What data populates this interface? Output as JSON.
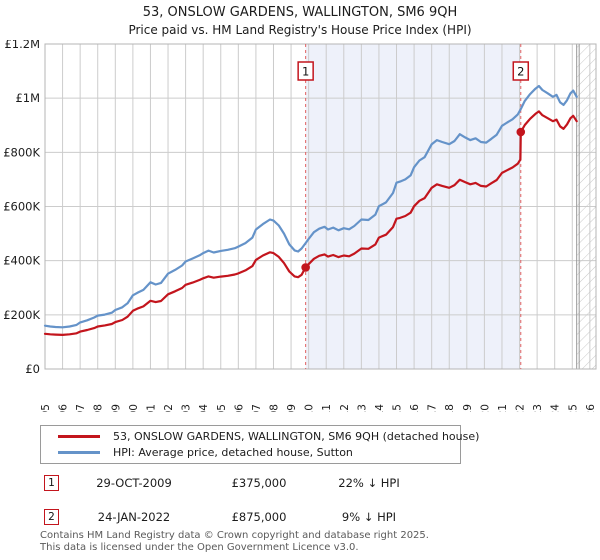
{
  "header": {
    "title": "53, ONSLOW GARDENS, WALLINGTON, SM6 9QH",
    "subtitle": "Price paid vs. HM Land Registry's House Price Index (HPI)"
  },
  "chart_data": {
    "type": "line",
    "title": "53, ONSLOW GARDENS, WALLINGTON, SM6 9QH",
    "subtitle": "Price paid vs. HM Land Registry's House Price Index (HPI)",
    "xlim": [
      1995,
      2026.35
    ],
    "ylim": [
      0,
      1200
    ],
    "values_unit": "GBP thousands",
    "grid": true,
    "legend_position": "bottom",
    "x_ticks": [
      1995,
      1996,
      1997,
      1998,
      1999,
      2000,
      2001,
      2002,
      2003,
      2004,
      2005,
      2006,
      2007,
      2008,
      2009,
      2010,
      2011,
      2012,
      2013,
      2014,
      2015,
      2016,
      2017,
      2018,
      2019,
      2020,
      2021,
      2022,
      2023,
      2024,
      2025,
      2026
    ],
    "y_tick_values": [
      0,
      200,
      400,
      600,
      800,
      1000,
      1200
    ],
    "y_tick_labels": [
      "£0",
      "£200K",
      "£400K",
      "£600K",
      "£800K",
      "£1M",
      "£1.2M"
    ],
    "shaded_region": {
      "from": 2009.83,
      "to": 2022.07,
      "color": "#eef1fa"
    },
    "hatch_from": 2025.25,
    "colors": {
      "grid": "#cccccc",
      "border": "#b5b5b5",
      "dashed": "#e06060",
      "hatch": "#c8c8c8"
    },
    "series": [
      {
        "name": "53, ONSLOW GARDENS, WALLINGTON, SM6 9QH (detached house)",
        "color": "#c3151d",
        "points": [
          [
            1995,
            130
          ],
          [
            1995.3,
            128
          ],
          [
            1995.6,
            127
          ],
          [
            1996,
            126
          ],
          [
            1996.4,
            128
          ],
          [
            1996.8,
            132
          ],
          [
            1997,
            138
          ],
          [
            1997.4,
            144
          ],
          [
            1997.8,
            151
          ],
          [
            1998,
            157
          ],
          [
            1998.4,
            161
          ],
          [
            1998.8,
            166
          ],
          [
            1999,
            173
          ],
          [
            1999.4,
            181
          ],
          [
            1999.7,
            193
          ],
          [
            2000,
            215
          ],
          [
            2000.3,
            224
          ],
          [
            2000.6,
            231
          ],
          [
            2001,
            252
          ],
          [
            2001.3,
            247
          ],
          [
            2001.6,
            251
          ],
          [
            2002,
            276
          ],
          [
            2002.4,
            287
          ],
          [
            2002.8,
            299
          ],
          [
            2003,
            311
          ],
          [
            2003.4,
            319
          ],
          [
            2003.8,
            329
          ],
          [
            2004,
            335
          ],
          [
            2004.3,
            342
          ],
          [
            2004.6,
            337
          ],
          [
            2005,
            341
          ],
          [
            2005.4,
            344
          ],
          [
            2005.8,
            349
          ],
          [
            2006,
            353
          ],
          [
            2006.4,
            364
          ],
          [
            2006.8,
            380
          ],
          [
            2007,
            403
          ],
          [
            2007.4,
            419
          ],
          [
            2007.8,
            431
          ],
          [
            2008,
            428
          ],
          [
            2008.3,
            414
          ],
          [
            2008.6,
            391
          ],
          [
            2008.9,
            360
          ],
          [
            2009.2,
            342
          ],
          [
            2009.4,
            339
          ],
          [
            2009.6,
            348
          ],
          [
            2009.83,
            375
          ],
          [
            2010,
            387
          ],
          [
            2010.3,
            407
          ],
          [
            2010.6,
            418
          ],
          [
            2010.9,
            423
          ],
          [
            2011.1,
            415
          ],
          [
            2011.4,
            421
          ],
          [
            2011.7,
            413
          ],
          [
            2012,
            419
          ],
          [
            2012.3,
            416
          ],
          [
            2012.6,
            426
          ],
          [
            2013,
            445
          ],
          [
            2013.4,
            444
          ],
          [
            2013.8,
            460
          ],
          [
            2014,
            485
          ],
          [
            2014.4,
            496
          ],
          [
            2014.8,
            524
          ],
          [
            2015,
            555
          ],
          [
            2015.2,
            558
          ],
          [
            2015.5,
            565
          ],
          [
            2015.8,
            577
          ],
          [
            2016,
            601
          ],
          [
            2016.3,
            621
          ],
          [
            2016.6,
            631
          ],
          [
            2017,
            669
          ],
          [
            2017.3,
            682
          ],
          [
            2017.6,
            676
          ],
          [
            2018,
            669
          ],
          [
            2018.3,
            679
          ],
          [
            2018.6,
            699
          ],
          [
            2018.9,
            690
          ],
          [
            2019.2,
            682
          ],
          [
            2019.5,
            687
          ],
          [
            2019.8,
            676
          ],
          [
            2020.1,
            674
          ],
          [
            2020.4,
            686
          ],
          [
            2020.7,
            698
          ],
          [
            2021,
            724
          ],
          [
            2021.3,
            734
          ],
          [
            2021.6,
            744
          ],
          [
            2021.9,
            758
          ],
          [
            2022.05,
            774
          ],
          [
            2022.07,
            875
          ],
          [
            2022.3,
            901
          ],
          [
            2022.6,
            924
          ],
          [
            2022.9,
            942
          ],
          [
            2023.1,
            951
          ],
          [
            2023.3,
            937
          ],
          [
            2023.6,
            926
          ],
          [
            2023.9,
            915
          ],
          [
            2024.1,
            921
          ],
          [
            2024.3,
            896
          ],
          [
            2024.5,
            887
          ],
          [
            2024.7,
            903
          ],
          [
            2024.9,
            926
          ],
          [
            2025.05,
            935
          ],
          [
            2025.25,
            915
          ]
        ]
      },
      {
        "name": "HPI: Average price, detached house, Sutton",
        "color": "#6593c9",
        "points": [
          [
            1995,
            160
          ],
          [
            1995.3,
            157
          ],
          [
            1995.6,
            155
          ],
          [
            1996,
            154
          ],
          [
            1996.4,
            157
          ],
          [
            1996.8,
            163
          ],
          [
            1997,
            172
          ],
          [
            1997.4,
            180
          ],
          [
            1997.8,
            190
          ],
          [
            1998,
            197
          ],
          [
            1998.4,
            201
          ],
          [
            1998.8,
            208
          ],
          [
            1999,
            218
          ],
          [
            1999.4,
            228
          ],
          [
            1999.7,
            243
          ],
          [
            2000,
            272
          ],
          [
            2000.3,
            283
          ],
          [
            2000.6,
            292
          ],
          [
            2001,
            320
          ],
          [
            2001.3,
            312
          ],
          [
            2001.6,
            318
          ],
          [
            2002,
            352
          ],
          [
            2002.4,
            366
          ],
          [
            2002.8,
            382
          ],
          [
            2003,
            397
          ],
          [
            2003.4,
            408
          ],
          [
            2003.8,
            420
          ],
          [
            2004,
            428
          ],
          [
            2004.3,
            437
          ],
          [
            2004.6,
            430
          ],
          [
            2005,
            436
          ],
          [
            2005.4,
            440
          ],
          [
            2005.8,
            446
          ],
          [
            2006,
            452
          ],
          [
            2006.4,
            465
          ],
          [
            2006.8,
            485
          ],
          [
            2007,
            515
          ],
          [
            2007.4,
            535
          ],
          [
            2007.8,
            552
          ],
          [
            2008,
            548
          ],
          [
            2008.3,
            530
          ],
          [
            2008.6,
            500
          ],
          [
            2008.9,
            460
          ],
          [
            2009.2,
            438
          ],
          [
            2009.4,
            434
          ],
          [
            2009.6,
            445
          ],
          [
            2009.83,
            465
          ],
          [
            2010,
            480
          ],
          [
            2010.3,
            505
          ],
          [
            2010.6,
            518
          ],
          [
            2010.9,
            525
          ],
          [
            2011.1,
            515
          ],
          [
            2011.4,
            522
          ],
          [
            2011.7,
            512
          ],
          [
            2012,
            520
          ],
          [
            2012.3,
            516
          ],
          [
            2012.6,
            528
          ],
          [
            2013,
            552
          ],
          [
            2013.4,
            550
          ],
          [
            2013.8,
            570
          ],
          [
            2014,
            601
          ],
          [
            2014.4,
            615
          ],
          [
            2014.8,
            650
          ],
          [
            2015,
            688
          ],
          [
            2015.2,
            692
          ],
          [
            2015.5,
            700
          ],
          [
            2015.8,
            715
          ],
          [
            2016,
            745
          ],
          [
            2016.3,
            770
          ],
          [
            2016.6,
            782
          ],
          [
            2017,
            830
          ],
          [
            2017.3,
            845
          ],
          [
            2017.6,
            838
          ],
          [
            2018,
            830
          ],
          [
            2018.3,
            842
          ],
          [
            2018.6,
            867
          ],
          [
            2018.9,
            855
          ],
          [
            2019.2,
            845
          ],
          [
            2019.5,
            852
          ],
          [
            2019.8,
            838
          ],
          [
            2020.1,
            836
          ],
          [
            2020.4,
            850
          ],
          [
            2020.7,
            865
          ],
          [
            2021,
            898
          ],
          [
            2021.3,
            910
          ],
          [
            2021.6,
            922
          ],
          [
            2021.9,
            940
          ],
          [
            2022.07,
            960
          ],
          [
            2022.3,
            990
          ],
          [
            2022.6,
            1015
          ],
          [
            2022.9,
            1035
          ],
          [
            2023.1,
            1045
          ],
          [
            2023.3,
            1030
          ],
          [
            2023.6,
            1018
          ],
          [
            2023.9,
            1005
          ],
          [
            2024.1,
            1012
          ],
          [
            2024.3,
            985
          ],
          [
            2024.5,
            975
          ],
          [
            2024.7,
            992
          ],
          [
            2024.9,
            1018
          ],
          [
            2025.05,
            1028
          ],
          [
            2025.25,
            1005
          ]
        ]
      }
    ],
    "markers": [
      {
        "label": "1",
        "x": 2009.83,
        "y": 375
      },
      {
        "label": "2",
        "x": 2022.07,
        "y": 875
      }
    ]
  },
  "transactions": [
    {
      "num": "1",
      "date": "29-OCT-2009",
      "price": "£375,000",
      "vs_hpi": "22% ↓ HPI"
    },
    {
      "num": "2",
      "date": "24-JAN-2022",
      "price": "£875,000",
      "vs_hpi": "9% ↓ HPI"
    }
  ],
  "footer": {
    "line1": "Contains HM Land Registry data © Crown copyright and database right 2025.",
    "line2": "This data is licensed under the Open Government Licence v3.0."
  }
}
